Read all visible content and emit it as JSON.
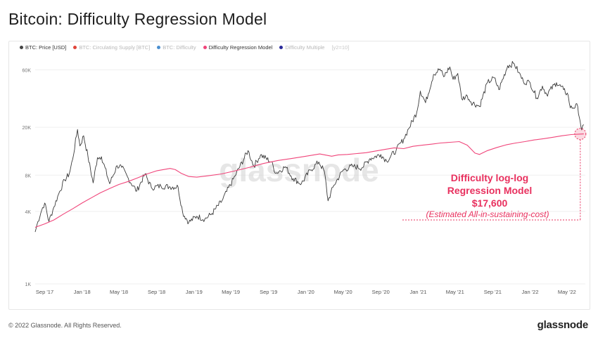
{
  "title": "Bitcoin: Difficulty Regression Model",
  "legend": [
    {
      "label": "BTC: Price [USD]",
      "color": "#444444",
      "active": true
    },
    {
      "label": "BTC: Circulating Supply [BTC]",
      "color": "#e0453a",
      "active": false
    },
    {
      "label": "BTC: Difficulty",
      "color": "#4a8fd0",
      "active": false
    },
    {
      "label": "Difficulty Regression Model",
      "color": "#f0457a",
      "active": true
    },
    {
      "label": "Difficulty Multiple",
      "color": "#2b2b9a",
      "active": false
    }
  ],
  "legend_scale": "[y2=10]",
  "watermark": "glassnode",
  "annotation": {
    "line1": "Difficulty log-log",
    "line2": "Regression Model",
    "line3": "$17,600",
    "line4": "(Estimated All-in-sustaining-cost)",
    "color": "#e8305e"
  },
  "footer": {
    "copyright": "© 2022 Glassnode. All Rights Reserved.",
    "logo": "glassnode"
  },
  "chart_data": {
    "type": "line",
    "scale": "log",
    "ylim": [
      1000,
      80000
    ],
    "xlim": [
      "2017-08-01",
      "2022-06-30"
    ],
    "y_ticks": [
      {
        "value": 1000,
        "label": "1K"
      },
      {
        "value": 4000,
        "label": "4K"
      },
      {
        "value": 8000,
        "label": "8K"
      },
      {
        "value": 20000,
        "label": "20K"
      },
      {
        "value": 60000,
        "label": "60K"
      }
    ],
    "x_ticks": [
      {
        "date": "2017-09-01",
        "label": "Sep '17"
      },
      {
        "date": "2018-01-01",
        "label": "Jan '18"
      },
      {
        "date": "2018-05-01",
        "label": "May '18"
      },
      {
        "date": "2018-09-01",
        "label": "Sep '18"
      },
      {
        "date": "2019-01-01",
        "label": "Jan '19"
      },
      {
        "date": "2019-05-01",
        "label": "May '19"
      },
      {
        "date": "2019-09-01",
        "label": "Sep '19"
      },
      {
        "date": "2020-01-01",
        "label": "Jan '20"
      },
      {
        "date": "2020-05-01",
        "label": "May '20"
      },
      {
        "date": "2020-09-01",
        "label": "Sep '20"
      },
      {
        "date": "2021-01-01",
        "label": "Jan '21"
      },
      {
        "date": "2021-05-01",
        "label": "May '21"
      },
      {
        "date": "2021-09-01",
        "label": "Sep '21"
      },
      {
        "date": "2022-01-01",
        "label": "Jan '22"
      },
      {
        "date": "2022-05-01",
        "label": "May '22"
      }
    ],
    "series": [
      {
        "name": "BTC: Price [USD]",
        "color": "#3a3a3a",
        "points": [
          [
            "2017-08-01",
            2700
          ],
          [
            "2017-08-10",
            3300
          ],
          [
            "2017-08-25",
            4300
          ],
          [
            "2017-09-01",
            4700
          ],
          [
            "2017-09-15",
            3300
          ],
          [
            "2017-10-01",
            4350
          ],
          [
            "2017-10-20",
            5900
          ],
          [
            "2017-11-05",
            7300
          ],
          [
            "2017-11-20",
            8200
          ],
          [
            "2017-12-01",
            10800
          ],
          [
            "2017-12-17",
            19200
          ],
          [
            "2017-12-25",
            14000
          ],
          [
            "2018-01-06",
            17000
          ],
          [
            "2018-01-20",
            11500
          ],
          [
            "2018-02-06",
            6900
          ],
          [
            "2018-02-20",
            11200
          ],
          [
            "2018-03-05",
            11400
          ],
          [
            "2018-04-01",
            6800
          ],
          [
            "2018-04-25",
            9600
          ],
          [
            "2018-05-10",
            9300
          ],
          [
            "2018-06-01",
            7500
          ],
          [
            "2018-06-28",
            5900
          ],
          [
            "2018-07-25",
            8200
          ],
          [
            "2018-08-15",
            6300
          ],
          [
            "2018-09-15",
            6500
          ],
          [
            "2018-10-15",
            6400
          ],
          [
            "2018-11-10",
            6400
          ],
          [
            "2018-11-25",
            3900
          ],
          [
            "2018-12-15",
            3250
          ],
          [
            "2019-01-10",
            3650
          ],
          [
            "2019-02-05",
            3450
          ],
          [
            "2019-03-01",
            3850
          ],
          [
            "2019-04-02",
            4900
          ],
          [
            "2019-05-15",
            7900
          ],
          [
            "2019-06-26",
            12800
          ],
          [
            "2019-07-15",
            9500
          ],
          [
            "2019-08-06",
            11800
          ],
          [
            "2019-09-10",
            10300
          ],
          [
            "2019-09-25",
            8300
          ],
          [
            "2019-10-26",
            9400
          ],
          [
            "2019-11-20",
            7500
          ],
          [
            "2019-12-17",
            6800
          ],
          [
            "2020-01-15",
            8800
          ],
          [
            "2020-02-12",
            10300
          ],
          [
            "2020-03-01",
            8600
          ],
          [
            "2020-03-13",
            4900
          ],
          [
            "2020-04-01",
            6600
          ],
          [
            "2020-05-01",
            8800
          ],
          [
            "2020-06-01",
            9500
          ],
          [
            "2020-07-01",
            9200
          ],
          [
            "2020-07-28",
            11000
          ],
          [
            "2020-09-01",
            11900
          ],
          [
            "2020-09-20",
            10500
          ],
          [
            "2020-10-21",
            12900
          ],
          [
            "2020-11-15",
            16000
          ],
          [
            "2020-12-01",
            19500
          ],
          [
            "2020-12-27",
            26500
          ],
          [
            "2021-01-08",
            40000
          ],
          [
            "2021-01-25",
            32000
          ],
          [
            "2021-02-20",
            55000
          ],
          [
            "2021-03-13",
            61000
          ],
          [
            "2021-03-25",
            52500
          ],
          [
            "2021-04-14",
            63500
          ],
          [
            "2021-04-25",
            50000
          ],
          [
            "2021-05-10",
            56000
          ],
          [
            "2021-05-23",
            34500
          ],
          [
            "2021-06-10",
            36500
          ],
          [
            "2021-06-22",
            32500
          ],
          [
            "2021-07-20",
            29800
          ],
          [
            "2021-08-15",
            47000
          ],
          [
            "2021-09-06",
            51500
          ],
          [
            "2021-09-21",
            41000
          ],
          [
            "2021-10-20",
            65000
          ],
          [
            "2021-11-10",
            67500
          ],
          [
            "2021-11-25",
            57000
          ],
          [
            "2021-12-10",
            48000
          ],
          [
            "2022-01-01",
            47000
          ],
          [
            "2022-01-23",
            35000
          ],
          [
            "2022-02-10",
            44000
          ],
          [
            "2022-02-24",
            37500
          ],
          [
            "2022-03-28",
            47000
          ],
          [
            "2022-04-20",
            41000
          ],
          [
            "2022-05-05",
            37000
          ],
          [
            "2022-05-12",
            29000
          ],
          [
            "2022-06-05",
            30000
          ],
          [
            "2022-06-13",
            22500
          ],
          [
            "2022-06-18",
            19000
          ],
          [
            "2022-06-25",
            21000
          ]
        ]
      },
      {
        "name": "Difficulty Regression Model",
        "color": "#f0457a",
        "points": [
          [
            "2017-08-01",
            2950
          ],
          [
            "2017-09-01",
            3150
          ],
          [
            "2017-10-01",
            3400
          ],
          [
            "2017-11-01",
            3800
          ],
          [
            "2017-12-01",
            4200
          ],
          [
            "2018-01-01",
            4700
          ],
          [
            "2018-02-01",
            5200
          ],
          [
            "2018-03-01",
            5700
          ],
          [
            "2018-04-01",
            6200
          ],
          [
            "2018-05-01",
            6700
          ],
          [
            "2018-06-01",
            7100
          ],
          [
            "2018-07-01",
            7600
          ],
          [
            "2018-08-01",
            8200
          ],
          [
            "2018-09-01",
            8700
          ],
          [
            "2018-10-15",
            9100
          ],
          [
            "2018-11-01",
            8900
          ],
          [
            "2018-11-20",
            8300
          ],
          [
            "2018-12-15",
            7800
          ],
          [
            "2019-01-10",
            7700
          ],
          [
            "2019-02-15",
            7900
          ],
          [
            "2019-04-01",
            8200
          ],
          [
            "2019-05-15",
            8700
          ],
          [
            "2019-07-01",
            9300
          ],
          [
            "2019-08-15",
            10000
          ],
          [
            "2019-10-01",
            10600
          ],
          [
            "2019-11-15",
            11000
          ],
          [
            "2020-01-01",
            11500
          ],
          [
            "2020-02-15",
            12000
          ],
          [
            "2020-03-25",
            11500
          ],
          [
            "2020-04-15",
            11800
          ],
          [
            "2020-05-15",
            11900
          ],
          [
            "2020-06-15",
            12100
          ],
          [
            "2020-07-15",
            12300
          ],
          [
            "2020-08-15",
            12700
          ],
          [
            "2020-09-15",
            13100
          ],
          [
            "2020-10-15",
            13500
          ],
          [
            "2020-11-15",
            13300
          ],
          [
            "2020-12-15",
            13900
          ],
          [
            "2021-01-15",
            14200
          ],
          [
            "2021-02-15",
            14500
          ],
          [
            "2021-03-15",
            14800
          ],
          [
            "2021-04-15",
            15000
          ],
          [
            "2021-05-15",
            15200
          ],
          [
            "2021-06-10",
            14200
          ],
          [
            "2021-07-05",
            12200
          ],
          [
            "2021-07-20",
            11900
          ],
          [
            "2021-08-15",
            12800
          ],
          [
            "2021-09-15",
            13600
          ],
          [
            "2021-10-15",
            14300
          ],
          [
            "2021-11-15",
            14800
          ],
          [
            "2021-12-15",
            15200
          ],
          [
            "2022-01-15",
            15700
          ],
          [
            "2022-02-15",
            16100
          ],
          [
            "2022-03-15",
            16500
          ],
          [
            "2022-04-15",
            17000
          ],
          [
            "2022-05-15",
            17400
          ],
          [
            "2022-06-25",
            17600
          ]
        ]
      }
    ]
  }
}
